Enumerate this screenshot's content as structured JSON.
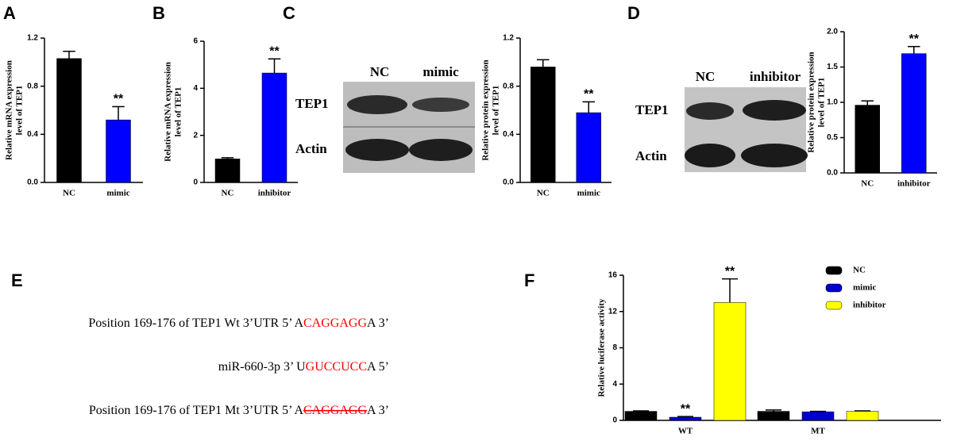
{
  "panels": [
    "A",
    "B",
    "C",
    "D",
    "E",
    "F"
  ],
  "blots": [
    {
      "lanes": [
        "NC",
        "mimic"
      ],
      "rows": [
        "TEP1",
        "Actin"
      ]
    },
    {
      "lanes": [
        "NC",
        "inhibitor"
      ],
      "rows": [
        "TEP1",
        "Actin"
      ]
    }
  ],
  "sequences": {
    "highlight_color": "#ff0000",
    "lines": [
      {
        "parts": [
          "Position 169-176 of TEP1 Wt 3’UTR 5’ A",
          "CAGGAGG",
          "A 3’"
        ]
      },
      {
        "parts": [
          "miR-660-3p 3’ U",
          "GUCCUCC",
          "A 5’"
        ]
      },
      {
        "parts": [
          "Position 169-176 of TEP1 Mt 3’UTR 5’ A",
          "CAGGAGG",
          "A 3’"
        ],
        "strike": true
      }
    ]
  },
  "chart_data": [
    {
      "type": "bar",
      "ylabel": [
        "Relative mRNA expression",
        "level of TEP1"
      ],
      "categories": [
        "NC",
        "mimic"
      ],
      "values": [
        1.03,
        0.52
      ],
      "errors": [
        0.06,
        0.11
      ],
      "colors": [
        "#000000",
        "#0000ff"
      ],
      "significance": [
        null,
        "**"
      ],
      "ylim": [
        0,
        1.2
      ],
      "yticks": [
        {
          "value": 0,
          "label": "0.0"
        },
        0.4,
        0.8,
        1.2
      ]
    },
    {
      "type": "bar",
      "ylabel": [
        "Relative mRNA expression",
        "level of TEP1"
      ],
      "categories": [
        "NC",
        "inhibitor"
      ],
      "values": [
        1.0,
        4.65
      ],
      "errors": [
        0.05,
        0.6
      ],
      "colors": [
        "#000000",
        "#0000ff"
      ],
      "significance": [
        null,
        "**"
      ],
      "ylim": [
        0,
        6
      ],
      "yticks": [
        0,
        2,
        4,
        6
      ]
    },
    {
      "type": "bar",
      "ylabel": [
        "Relative protein expression",
        "level of TEP1"
      ],
      "categories": [
        "NC",
        "mimic"
      ],
      "values": [
        0.96,
        0.58
      ],
      "errors": [
        0.06,
        0.09
      ],
      "colors": [
        "#000000",
        "#0000ff"
      ],
      "significance": [
        null,
        "**"
      ],
      "ylim": [
        0,
        1.2
      ],
      "yticks": [
        {
          "value": 0,
          "label": "0.0"
        },
        0.4,
        0.8,
        1.2
      ]
    },
    {
      "type": "bar",
      "ylabel": [
        "Relative protein expression",
        "level of TEP1"
      ],
      "categories": [
        "NC",
        "inhibitor"
      ],
      "values": [
        0.96,
        1.69
      ],
      "errors": [
        0.06,
        0.1
      ],
      "colors": [
        "#000000",
        "#0000ff"
      ],
      "significance": [
        null,
        "**"
      ],
      "ylim": [
        0,
        2
      ],
      "yticks": [
        {
          "value": 0,
          "label": "0.0"
        },
        0.5,
        {
          "value": 1,
          "label": "1.0"
        },
        1.5,
        {
          "value": 2,
          "label": "2.0"
        }
      ]
    },
    {
      "type": "grouped_bar",
      "ylabel": [
        "Relative  luciferase activity"
      ],
      "categories": [
        "WT",
        "MT"
      ],
      "series": [
        {
          "name": "NC",
          "color": "#000000",
          "values": [
            1.0,
            1.0
          ],
          "errors": [
            0.05,
            0.15
          ],
          "significance": [
            null,
            null
          ]
        },
        {
          "name": "mimic",
          "color": "#0000cc",
          "values": [
            0.35,
            0.95
          ],
          "errors": [
            0.08,
            0.05
          ],
          "significance": [
            "**",
            null
          ]
        },
        {
          "name": "inhibitor",
          "color": "#ffff00",
          "values": [
            13.0,
            1.0
          ],
          "errors": [
            2.6,
            0.05
          ],
          "significance": [
            "**",
            null
          ]
        }
      ],
      "ylim": [
        0,
        16
      ],
      "yticks": [
        0,
        4,
        8,
        12,
        16
      ],
      "legend": "upper right"
    }
  ]
}
